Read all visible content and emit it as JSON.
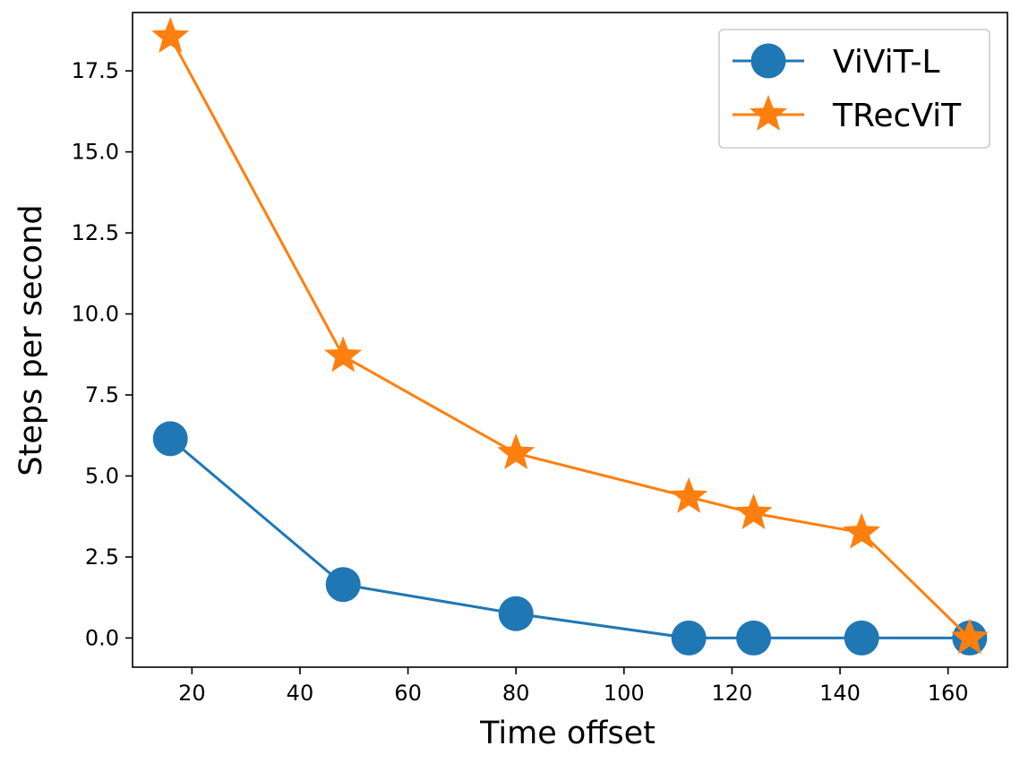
{
  "chart_data": {
    "type": "line",
    "xlabel": "Time offset",
    "ylabel": "Steps per second",
    "xlim": [
      9,
      171
    ],
    "ylim": [
      -0.9,
      19.3
    ],
    "xticks": [
      20,
      40,
      60,
      80,
      100,
      120,
      140,
      160
    ],
    "yticks": [
      0.0,
      2.5,
      5.0,
      7.5,
      10.0,
      12.5,
      15.0,
      17.5
    ],
    "grid": false,
    "legend_position": "top-right",
    "series": [
      {
        "name": "ViViT-L",
        "color": "#1f77b4",
        "marker": "circle",
        "x": [
          16,
          48,
          80,
          112,
          124,
          144,
          164
        ],
        "y": [
          6.15,
          1.65,
          0.75,
          0.0,
          0.0,
          0.0,
          0.0
        ]
      },
      {
        "name": "TRecViT",
        "color": "#ff7f0e",
        "marker": "star",
        "x": [
          16,
          48,
          80,
          112,
          124,
          144,
          164
        ],
        "y": [
          18.55,
          8.7,
          5.7,
          4.35,
          3.85,
          3.25,
          0.0
        ]
      }
    ]
  }
}
